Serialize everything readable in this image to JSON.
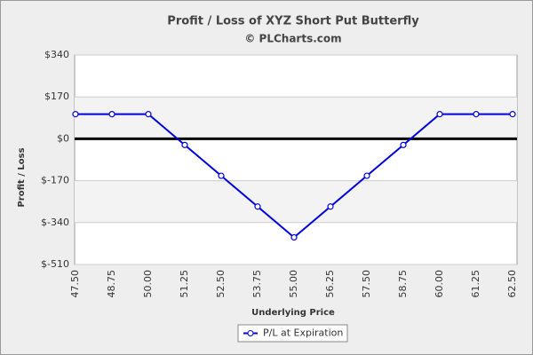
{
  "chart_data": {
    "type": "line",
    "title": "Profit / Loss of XYZ Short Put Butterfly",
    "subtitle": "© PLCharts.com",
    "x_label": "Underlying Price",
    "y_label": "Profit / Loss",
    "categories": [
      "47.50",
      "48.75",
      "50.00",
      "51.25",
      "52.50",
      "53.75",
      "55.00",
      "56.25",
      "57.50",
      "58.75",
      "60.00",
      "61.25",
      "62.50"
    ],
    "series": [
      {
        "name": "P/L at Expiration",
        "color": "#0000dd",
        "values": [
          100,
          100,
          100,
          -25,
          -150,
          -275,
          -400,
          -275,
          -150,
          -25,
          100,
          100,
          100
        ]
      }
    ],
    "ylim": [
      -510,
      340
    ],
    "yticks": [
      {
        "value": -510,
        "label": "$-510"
      },
      {
        "value": -340,
        "label": "$-340"
      },
      {
        "value": -170,
        "label": "$-170"
      },
      {
        "value": 0,
        "label": "$0"
      },
      {
        "value": 170,
        "label": "$170"
      },
      {
        "value": 340,
        "label": "$340"
      }
    ],
    "grid": true,
    "legend": "bottom"
  }
}
